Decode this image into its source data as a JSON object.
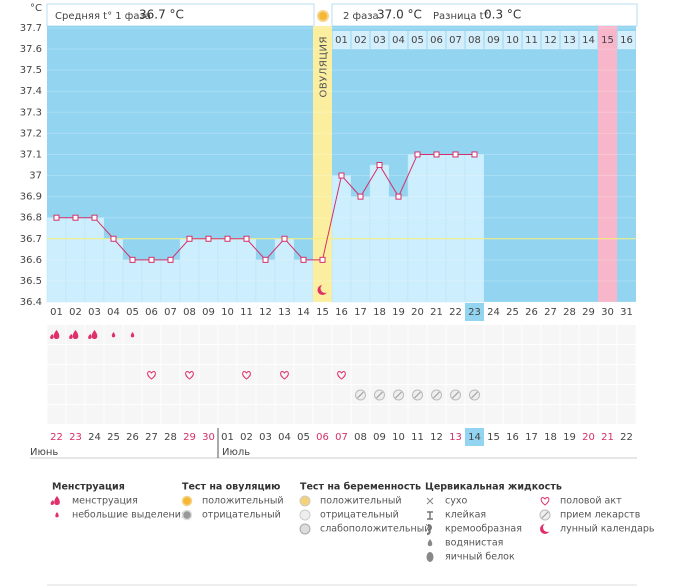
{
  "header": {
    "phase1": {
      "label": "Средняя t° 1 фаза",
      "value": "36.7 °C"
    },
    "phase2": {
      "label": "2 фаза",
      "value": "37.0 °C"
    },
    "difference": {
      "label": "Разница t°",
      "value": "0.3 °C"
    }
  },
  "chart_data": {
    "type": "line",
    "y_label": "°C",
    "color": "#d4306a",
    "categories": [
      "01",
      "02",
      "03",
      "04",
      "05",
      "06",
      "07",
      "08",
      "09",
      "10",
      "11",
      "12",
      "13",
      "14",
      "15",
      "16",
      "17",
      "18",
      "19",
      "20",
      "21",
      "22",
      "23",
      "24",
      "25",
      "26",
      "27",
      "28",
      "29",
      "30",
      "31"
    ],
    "values": [
      36.8,
      36.8,
      36.8,
      36.7,
      36.6,
      36.6,
      36.6,
      36.7,
      36.7,
      36.7,
      36.7,
      36.6,
      36.7,
      36.6,
      36.6,
      37.0,
      36.9,
      37.05,
      36.9,
      37.1,
      37.1,
      37.1,
      37.1,
      null,
      null,
      null,
      null,
      null,
      null,
      null,
      null
    ],
    "ylim": [
      36.4,
      37.7
    ],
    "yticks": [
      36.4,
      36.5,
      36.6,
      36.7,
      36.8,
      36.9,
      37,
      37.1,
      37.2,
      37.3,
      37.4,
      37.5,
      37.6,
      37.7
    ],
    "grid": true,
    "coverline": 36.7,
    "ovulation": {
      "label": "ОВУЛЯЦИЯ",
      "category": "15"
    },
    "phase2_days": [
      null,
      null,
      null,
      null,
      null,
      null,
      null,
      null,
      null,
      null,
      null,
      null,
      null,
      null,
      null,
      "01",
      "02",
      "03",
      "04",
      "05",
      "06",
      "07",
      "08",
      "09",
      "10",
      "11",
      "12",
      "13",
      "14",
      "15",
      "16"
    ],
    "today": "23",
    "period_day": "30",
    "dates": [
      "22",
      "23",
      "24",
      "25",
      "26",
      "27",
      "28",
      "29",
      "30",
      "01",
      "02",
      "03",
      "04",
      "05",
      "06",
      "07",
      "08",
      "09",
      "10",
      "11",
      "12",
      "13",
      "14",
      "15",
      "16",
      "17",
      "18",
      "19",
      "20",
      "21",
      "22"
    ],
    "red_dates": [
      "01",
      "02",
      "08",
      "09",
      "15",
      "16",
      "22",
      "29",
      "30"
    ],
    "months": [
      {
        "label": "Июнь",
        "category": "01"
      },
      {
        "label": "Июль",
        "category": "10"
      }
    ],
    "events": {
      "menstruation": [
        "01",
        "02",
        "03"
      ],
      "spotting": [
        "04",
        "05"
      ],
      "intercourse": [
        "06",
        "08",
        "11",
        "13",
        "16"
      ],
      "medication": [
        "17",
        "18",
        "19",
        "20",
        "21",
        "22",
        "23"
      ]
    }
  },
  "legend": {
    "groups": [
      {
        "title": "Менструация",
        "items": [
          {
            "label": "менструация",
            "icon": "menstruation"
          },
          {
            "label": "небольшие выделения",
            "icon": "spotting"
          }
        ]
      },
      {
        "title": "Тест на овуляцию",
        "items": [
          {
            "label": "положительный",
            "icon": "ovu-pos"
          },
          {
            "label": "отрицательный",
            "icon": "ovu-neg"
          }
        ]
      },
      {
        "title": "Тест на беременность",
        "items": [
          {
            "label": "положительный",
            "icon": "preg-pos"
          },
          {
            "label": "отрицательный",
            "icon": "preg-neg"
          },
          {
            "label": "слабоположительный",
            "icon": "preg-weak"
          }
        ]
      },
      {
        "title": "Цервикальная жидкость",
        "items": [
          {
            "label": "сухо",
            "icon": "dry"
          },
          {
            "label": "клейкая",
            "icon": "sticky"
          },
          {
            "label": "кремообразная",
            "icon": "creamy"
          },
          {
            "label": "водянистая",
            "icon": "watery"
          },
          {
            "label": "яичный белок",
            "icon": "eggwhite"
          }
        ]
      },
      {
        "items": [
          {
            "label": "половой акт",
            "icon": "intercourse"
          },
          {
            "label": "прием лекарств",
            "icon": "medication"
          },
          {
            "label": "лунный календарь",
            "icon": "moon"
          }
        ]
      }
    ]
  }
}
